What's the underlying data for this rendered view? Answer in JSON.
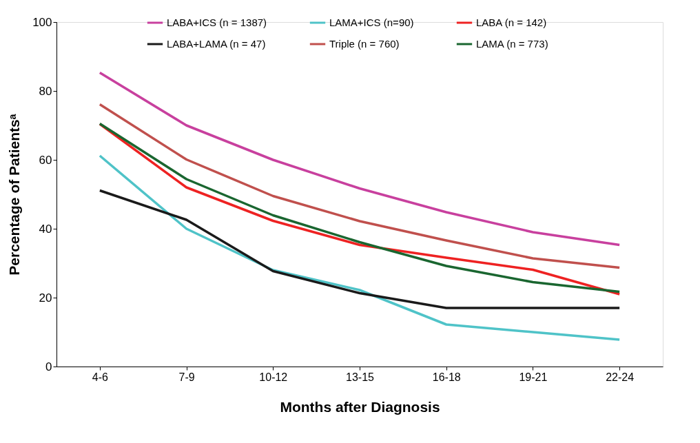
{
  "chart_data": {
    "type": "line",
    "xlabel": "Months after Diagnosis",
    "ylabel": "Percentage of Patientsᵃ",
    "categories": [
      "4-6",
      "7-9",
      "10-12",
      "13-15",
      "16-18",
      "19-21",
      "22-24"
    ],
    "ylim": [
      0,
      100
    ],
    "yticks": [
      0,
      20,
      40,
      60,
      80,
      100
    ],
    "grid": false,
    "legend": "top",
    "marker": "none",
    "line_style": "solid",
    "series": [
      {
        "name": "LABA+ICS (n = 1387)",
        "color": "#c8409e",
        "values": [
          85.3,
          70,
          60,
          51.7,
          44.8,
          39,
          35.3
        ]
      },
      {
        "name": "LAMA+ICS (n=90)",
        "color": "#4fc3c8",
        "values": [
          61.2,
          40,
          28,
          22.2,
          12.2,
          10,
          7.8
        ]
      },
      {
        "name": "LABA (n = 142)",
        "color": "#ee2222",
        "values": [
          70.4,
          52,
          42.3,
          35.3,
          31.6,
          28.1,
          21
        ]
      },
      {
        "name": "LABA+LAMA (n = 47)",
        "color": "#1a1a1a",
        "values": [
          51.1,
          42.6,
          27.7,
          21.3,
          17,
          17,
          17
        ]
      },
      {
        "name": "Triple (n = 760)",
        "color": "#c0504d",
        "values": [
          76.1,
          60.1,
          49.5,
          42.2,
          36.6,
          31.4,
          28.7
        ]
      },
      {
        "name": "LAMA (n = 773)",
        "color": "#1a6630",
        "values": [
          70.5,
          54.4,
          43.9,
          36.1,
          29.2,
          24.5,
          21.7
        ]
      }
    ]
  }
}
